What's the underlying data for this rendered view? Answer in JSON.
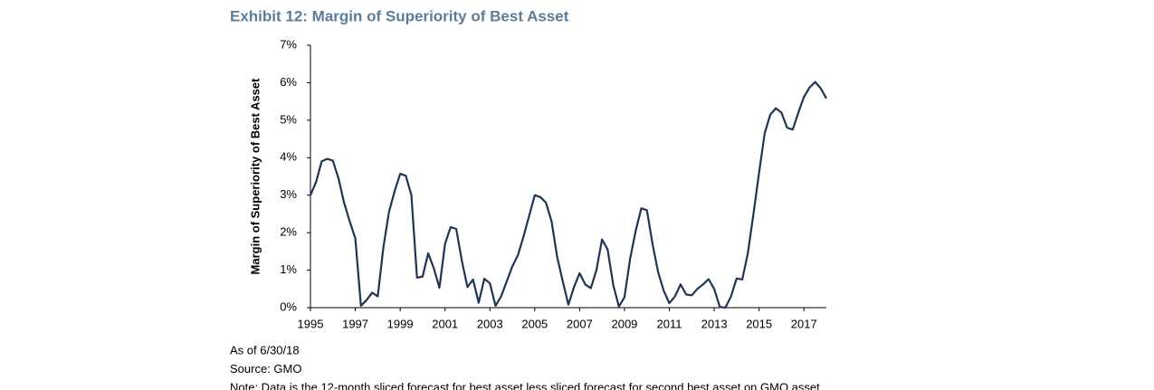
{
  "chart_data": {
    "type": "line",
    "title": "Exhibit 12: Margin of Superiority of Best Asset",
    "y_label": "Margin of Superiority of Best Asset",
    "x": [
      1995,
      1995.25,
      1995.5,
      1995.75,
      1996,
      1996.25,
      1996.5,
      1996.75,
      1997,
      1997.25,
      1997.5,
      1997.75,
      1998,
      1998.25,
      1998.5,
      1998.75,
      1999,
      1999.25,
      1999.5,
      1999.75,
      2000,
      2000.25,
      2000.5,
      2000.75,
      2001,
      2001.25,
      2001.5,
      2001.75,
      2002,
      2002.25,
      2002.5,
      2002.75,
      2003,
      2003.25,
      2003.5,
      2003.75,
      2004,
      2004.25,
      2004.5,
      2004.75,
      2005,
      2005.25,
      2005.5,
      2005.75,
      2006,
      2006.25,
      2006.5,
      2006.75,
      2007,
      2007.25,
      2007.5,
      2007.75,
      2008,
      2008.25,
      2008.5,
      2008.75,
      2009,
      2009.25,
      2009.5,
      2009.75,
      2010,
      2010.25,
      2010.5,
      2010.75,
      2011,
      2011.25,
      2011.5,
      2011.75,
      2012,
      2012.25,
      2012.5,
      2012.75,
      2013,
      2013.25,
      2013.5,
      2013.75,
      2014,
      2014.25,
      2014.5,
      2014.75,
      2015,
      2015.25,
      2015.5,
      2015.75,
      2016,
      2016.25,
      2016.5,
      2016.75,
      2017,
      2017.25,
      2017.5,
      2017.75,
      2018
    ],
    "series": [
      {
        "name": "Margin of Superiority of Best Asset",
        "color": "#1f3552",
        "values": [
          3.0,
          3.35,
          3.9,
          3.97,
          3.92,
          3.45,
          2.8,
          2.3,
          1.85,
          0.05,
          0.2,
          0.4,
          0.3,
          1.6,
          2.55,
          3.1,
          3.57,
          3.52,
          3.0,
          0.8,
          0.83,
          1.45,
          1.05,
          0.53,
          1.7,
          2.15,
          2.1,
          1.25,
          0.55,
          0.75,
          0.13,
          0.77,
          0.65,
          0.05,
          0.3,
          0.7,
          1.1,
          1.4,
          1.9,
          2.45,
          3.0,
          2.95,
          2.8,
          2.3,
          1.35,
          0.7,
          0.08,
          0.55,
          0.92,
          0.62,
          0.52,
          1.0,
          1.82,
          1.55,
          0.6,
          0.03,
          0.28,
          1.3,
          2.05,
          2.65,
          2.6,
          1.7,
          0.95,
          0.45,
          0.12,
          0.3,
          0.62,
          0.35,
          0.33,
          0.5,
          0.62,
          0.76,
          0.5,
          0.02,
          0.0,
          0.3,
          0.78,
          0.75,
          1.45,
          2.5,
          3.6,
          4.65,
          5.15,
          5.32,
          5.2,
          4.8,
          4.75,
          5.2,
          5.62,
          5.87,
          6.02,
          5.85,
          5.58
        ]
      }
    ],
    "xlim": [
      1995,
      2018
    ],
    "xticks": [
      1995,
      1997,
      1999,
      2001,
      2003,
      2005,
      2007,
      2009,
      2011,
      2013,
      2015,
      2017
    ],
    "ylim": [
      0,
      7
    ],
    "yticks": [
      {
        "value": 0,
        "label": "0%"
      },
      {
        "value": 1,
        "label": "1%"
      },
      {
        "value": 2,
        "label": "2%"
      },
      {
        "value": 3,
        "label": "3%"
      },
      {
        "value": 4,
        "label": "4%"
      },
      {
        "value": 5,
        "label": "5%"
      },
      {
        "value": 6,
        "label": "6%"
      },
      {
        "value": 7,
        "label": "7%"
      }
    ],
    "grid": false,
    "notes": [
      "As of 6/30/18",
      "Source: GMO",
      "Note: Data is the 12-month sliced forecast for best asset less sliced forecast for second best asset on GMO asset"
    ]
  }
}
